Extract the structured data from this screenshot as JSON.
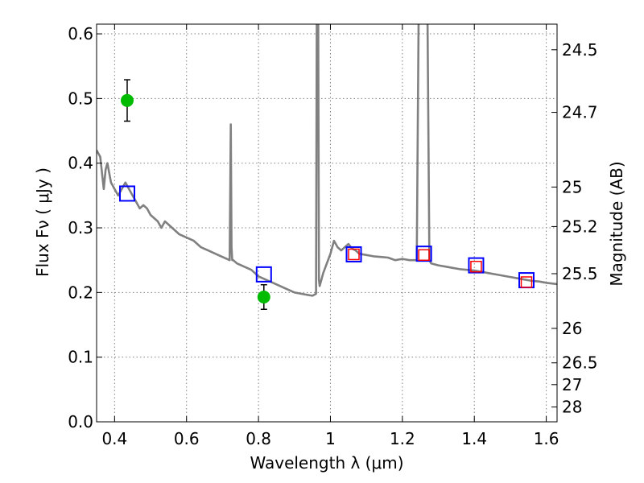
{
  "chart_data": {
    "type": "line",
    "xlabel": "Wavelength  λ (μm)",
    "ylabel": "Flux  Fν  ( μJy )",
    "y2label": "Magnitude (AB)",
    "xlim": [
      0.35,
      1.63
    ],
    "ylim": [
      0.0,
      0.615
    ],
    "grid": true,
    "x_ticks": [
      0.4,
      0.6,
      0.8,
      1.0,
      1.2,
      1.4,
      1.6
    ],
    "x_tick_labels": [
      "0.4",
      "0.6",
      "0.8",
      "1",
      "1.2",
      "1.4",
      "1.6"
    ],
    "y_ticks": [
      0.0,
      0.1,
      0.2,
      0.3,
      0.4,
      0.5,
      0.6
    ],
    "y_tick_labels": [
      "0.0",
      "0.1",
      "0.2",
      "0.3",
      "0.4",
      "0.5",
      "0.6"
    ],
    "y2_ticks": [
      {
        "label": "24.5",
        "flux": 0.5754
      },
      {
        "label": "24.7",
        "flux": 0.4786
      },
      {
        "label": "25",
        "flux": 0.3631
      },
      {
        "label": "25.2",
        "flux": 0.302
      },
      {
        "label": "25.5",
        "flux": 0.2291
      },
      {
        "label": "26",
        "flux": 0.1445
      },
      {
        "label": "26.5",
        "flux": 0.0912
      },
      {
        "label": "27",
        "flux": 0.0575
      },
      {
        "label": "28",
        "flux": 0.0229
      }
    ],
    "colors": {
      "sed": "#808080",
      "photometry": "#00bb00",
      "model_blue": "#0000ff",
      "model_red": "#ff0000",
      "grid": "#808080"
    },
    "series": [
      {
        "type": "line",
        "x": [
          0.35,
          0.36,
          0.37,
          0.375,
          0.38,
          0.39,
          0.4,
          0.41,
          0.42,
          0.43,
          0.44,
          0.45,
          0.46,
          0.47,
          0.48,
          0.49,
          0.5,
          0.51,
          0.52,
          0.53,
          0.54,
          0.55,
          0.56,
          0.58,
          0.6,
          0.62,
          0.64,
          0.66,
          0.68,
          0.7,
          0.72,
          0.723,
          0.725,
          0.727,
          0.73,
          0.74,
          0.76,
          0.78,
          0.8,
          0.82,
          0.84,
          0.86,
          0.88,
          0.9,
          0.92,
          0.94,
          0.95,
          0.96,
          0.962,
          0.964,
          0.966,
          0.968,
          0.97,
          0.98,
          0.99,
          1.0,
          1.01,
          1.02,
          1.03,
          1.04,
          1.05,
          1.06,
          1.07,
          1.08,
          1.1,
          1.12,
          1.14,
          1.16,
          1.18,
          1.2,
          1.22,
          1.24,
          1.245,
          1.25,
          1.255,
          1.26,
          1.265,
          1.27,
          1.275,
          1.28,
          1.3,
          1.32,
          1.34,
          1.36,
          1.38,
          1.4,
          1.42,
          1.44,
          1.46,
          1.48,
          1.5,
          1.52,
          1.54,
          1.56,
          1.58,
          1.6,
          1.63
        ],
        "y": [
          0.42,
          0.41,
          0.36,
          0.39,
          0.4,
          0.37,
          0.36,
          0.35,
          0.36,
          0.37,
          0.36,
          0.35,
          0.34,
          0.33,
          0.335,
          0.33,
          0.32,
          0.315,
          0.31,
          0.3,
          0.31,
          0.305,
          0.3,
          0.29,
          0.285,
          0.28,
          0.27,
          0.265,
          0.26,
          0.255,
          0.25,
          0.46,
          0.27,
          0.25,
          0.25,
          0.245,
          0.24,
          0.235,
          0.225,
          0.22,
          0.215,
          0.21,
          0.205,
          0.2,
          0.198,
          0.196,
          0.195,
          0.198,
          0.62,
          0.62,
          0.62,
          0.22,
          0.21,
          0.23,
          0.245,
          0.26,
          0.28,
          0.27,
          0.265,
          0.27,
          0.275,
          0.268,
          0.265,
          0.26,
          0.258,
          0.256,
          0.255,
          0.254,
          0.25,
          0.252,
          0.25,
          0.25,
          0.62,
          0.62,
          0.62,
          0.62,
          0.62,
          0.62,
          0.25,
          0.245,
          0.242,
          0.24,
          0.238,
          0.236,
          0.235,
          0.234,
          0.232,
          0.23,
          0.228,
          0.226,
          0.224,
          0.222,
          0.22,
          0.218,
          0.217,
          0.215,
          0.213
        ]
      },
      {
        "type": "scatter",
        "marker": "circle",
        "x": [
          0.435,
          0.815
        ],
        "y": [
          0.497,
          0.193
        ],
        "yerr": [
          0.032,
          0.019
        ]
      },
      {
        "type": "scatter",
        "marker": "square-blue",
        "x": [
          0.435,
          0.815,
          1.065,
          1.26,
          1.405,
          1.545
        ],
        "y": [
          0.353,
          0.228,
          0.259,
          0.26,
          0.242,
          0.219
        ]
      },
      {
        "type": "scatter",
        "marker": "square-red",
        "x": [
          1.065,
          1.26,
          1.405,
          1.545
        ],
        "y": [
          0.259,
          0.258,
          0.24,
          0.216
        ]
      }
    ]
  }
}
